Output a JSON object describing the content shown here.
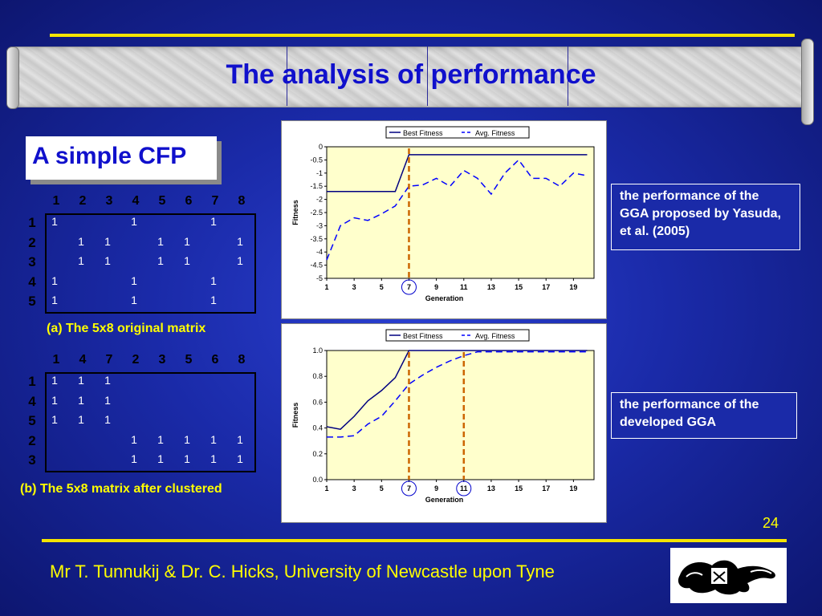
{
  "title": "The analysis of performance",
  "subtitle_box": "A simple CFP",
  "matrix_a": {
    "caption": "(a) The 5x8 original matrix",
    "col_headers": [
      "1",
      "2",
      "3",
      "4",
      "5",
      "6",
      "7",
      "8"
    ],
    "row_headers": [
      "1",
      "2",
      "3",
      "4",
      "5"
    ],
    "cells": [
      [
        "1",
        "",
        "",
        "1",
        "",
        "",
        "1",
        ""
      ],
      [
        "",
        "1",
        "1",
        "",
        "1",
        "1",
        "",
        "1"
      ],
      [
        "",
        "1",
        "1",
        "",
        "1",
        "1",
        "",
        "1"
      ],
      [
        "1",
        "",
        "",
        "1",
        "",
        "",
        "1",
        ""
      ],
      [
        "1",
        "",
        "",
        "1",
        "",
        "",
        "1",
        ""
      ]
    ]
  },
  "matrix_b": {
    "caption": "(b) The 5x8 matrix after clustered",
    "col_headers": [
      "1",
      "4",
      "7",
      "2",
      "3",
      "5",
      "6",
      "8"
    ],
    "row_headers": [
      "1",
      "4",
      "5",
      "2",
      "3"
    ],
    "cells": [
      [
        "1",
        "1",
        "1",
        "",
        "",
        "",
        "",
        ""
      ],
      [
        "1",
        "1",
        "1",
        "",
        "",
        "",
        "",
        ""
      ],
      [
        "1",
        "1",
        "1",
        "",
        "",
        "",
        "",
        ""
      ],
      [
        "",
        "",
        "",
        "1",
        "1",
        "1",
        "1",
        "1"
      ],
      [
        "",
        "",
        "",
        "1",
        "1",
        "1",
        "1",
        "1"
      ]
    ]
  },
  "chart_data": [
    {
      "type": "line",
      "xlabel": "Generation",
      "ylabel": "Fitness",
      "x": [
        1,
        2,
        3,
        4,
        5,
        6,
        7,
        8,
        9,
        10,
        11,
        12,
        13,
        14,
        15,
        16,
        17,
        18,
        19,
        20
      ],
      "x_ticks": [
        "1",
        "3",
        "5",
        "7",
        "9",
        "11",
        "13",
        "15",
        "17",
        "19"
      ],
      "y_ticks": [
        "0",
        "-0.5",
        "-1",
        "-1.5",
        "-2",
        "-2.5",
        "-3",
        "-3.5",
        "-4",
        "-4.5",
        "-5"
      ],
      "ylim": [
        -5,
        0
      ],
      "legend_position": "top",
      "series": [
        {
          "name": "Best Fitness",
          "color": "#000080",
          "dash": false,
          "values": [
            -1.7,
            -1.7,
            -1.7,
            -1.7,
            -1.7,
            -1.7,
            -0.3,
            -0.3,
            -0.3,
            -0.3,
            -0.3,
            -0.3,
            -0.3,
            -0.3,
            -0.3,
            -0.3,
            -0.3,
            -0.3,
            -0.3,
            -0.3
          ]
        },
        {
          "name": "Avg. Fitness",
          "color": "#0000ff",
          "dash": true,
          "values": [
            -4.3,
            -3.0,
            -2.7,
            -2.8,
            -2.55,
            -2.25,
            -1.5,
            -1.45,
            -1.2,
            -1.5,
            -0.9,
            -1.2,
            -1.8,
            -1.0,
            -0.5,
            -1.2,
            -1.2,
            -1.5,
            -1.0,
            -1.1
          ]
        }
      ],
      "markers": {
        "circle_x": 7,
        "dashed_vlines": [
          7
        ]
      }
    },
    {
      "type": "line",
      "xlabel": "Generation",
      "ylabel": "Fitness",
      "x": [
        1,
        2,
        3,
        4,
        5,
        6,
        7,
        8,
        9,
        10,
        11,
        12,
        13,
        14,
        15,
        16,
        17,
        18,
        19,
        20
      ],
      "x_ticks": [
        "1",
        "3",
        "5",
        "7",
        "9",
        "11",
        "13",
        "15",
        "17",
        "19"
      ],
      "y_ticks": [
        "1.0",
        "0.8",
        "0.6",
        "0.4",
        "0.2",
        "0.0"
      ],
      "ylim": [
        0,
        1
      ],
      "legend_position": "top",
      "series": [
        {
          "name": "Best Fitness",
          "color": "#000080",
          "dash": false,
          "values": [
            0.41,
            0.39,
            0.49,
            0.61,
            0.69,
            0.79,
            1.0,
            1.0,
            1.0,
            1.0,
            1.0,
            1.0,
            1.0,
            1.0,
            1.0,
            1.0,
            1.0,
            1.0,
            1.0,
            1.0
          ]
        },
        {
          "name": "Avg. Fitness",
          "color": "#0000ff",
          "dash": true,
          "values": [
            0.33,
            0.33,
            0.34,
            0.43,
            0.49,
            0.61,
            0.74,
            0.81,
            0.87,
            0.92,
            0.96,
            0.99,
            0.99,
            0.99,
            0.99,
            0.99,
            0.99,
            0.99,
            0.99,
            0.99
          ]
        }
      ],
      "markers": {
        "circle_x": [
          7,
          11
        ],
        "dashed_vlines": [
          7,
          11
        ]
      }
    }
  ],
  "notes": {
    "top": "the performance of the GGA proposed by Yasuda, et al. (2005)",
    "bottom": "the performance of the developed GGA"
  },
  "page_number": "24",
  "footer": "Mr T. Tunnukij & Dr. C. Hicks, University of Newcastle upon Tyne",
  "colors": {
    "background": "#1a2aa8",
    "title": "#1010cc",
    "accent_yellow": "#f5e400",
    "dashed_marker": "#cc6600",
    "chart_plot_bg": "#ffffcc"
  }
}
